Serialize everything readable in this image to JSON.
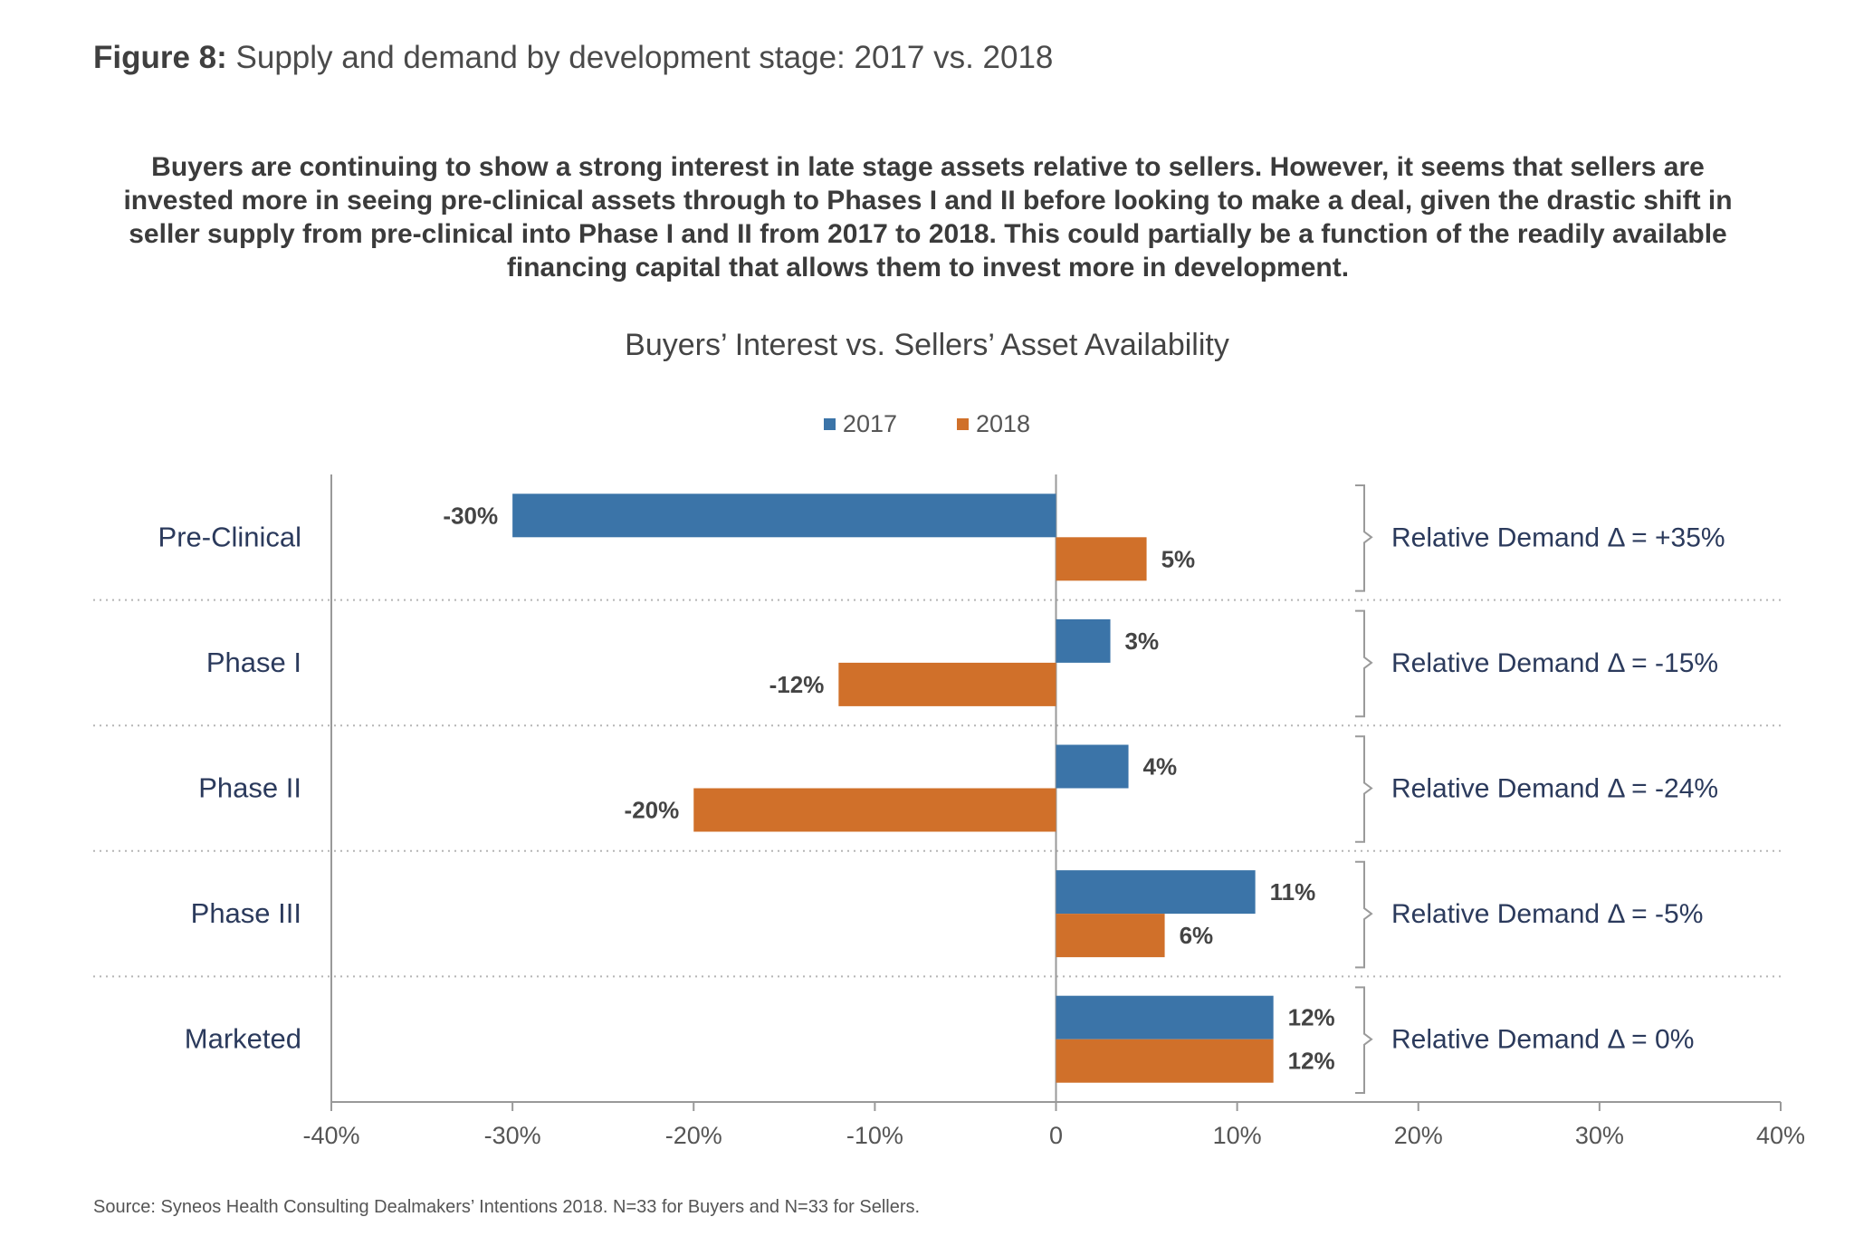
{
  "figure": {
    "label": "Figure 8:",
    "title": "Supply and demand by development stage: 2017 vs. 2018"
  },
  "summary": "Buyers are continuing to show a strong interest in late stage assets relative to sellers.  However, it seems that sellers are invested more in seeing pre-clinical assets through to Phases I and II before looking to make a deal, given the drastic shift in seller supply from pre-clinical into Phase I and II from 2017 to 2018. This could partially be a function of the readily available financing capital that allows them to invest more in development.",
  "source": "Source: Syneos Health Consulting Dealmakers’ Intentions 2018. N=33 for Buyers and N=33 for Sellers.",
  "chart_data": {
    "type": "bar",
    "orientation": "horizontal",
    "title": "Buyers’ Interest vs. Sellers’ Asset Availability",
    "categories": [
      "Pre-Clinical",
      "Phase I",
      "Phase II",
      "Phase III",
      "Marketed"
    ],
    "series": [
      {
        "name": "2017",
        "color": "#3b74a8",
        "values": [
          -30,
          3,
          4,
          11,
          12
        ],
        "labels": [
          "-30%",
          "3%",
          "4%",
          "11%",
          "12%"
        ]
      },
      {
        "name": "2018",
        "color": "#d0702a",
        "values": [
          5,
          -12,
          -20,
          6,
          12
        ],
        "labels": [
          "5%",
          "-12%",
          "-20%",
          "6%",
          "12%"
        ]
      }
    ],
    "xlim": [
      -40,
      40
    ],
    "xticks": [
      -40,
      -30,
      -20,
      -10,
      0,
      10,
      20,
      30,
      40
    ],
    "xtick_labels": [
      "-40%",
      "-30%",
      "-20%",
      "-10%",
      "0",
      "10%",
      "20%",
      "30%",
      "40%"
    ],
    "annotations": [
      "Relative Demand Δ = +35%",
      "Relative Demand Δ = -15%",
      "Relative Demand Δ = -24%",
      "Relative Demand Δ = -5%",
      "Relative Demand Δ = 0%"
    ],
    "legend_position": "top-center",
    "grid": "dotted row separators"
  },
  "colors": {
    "series_2017": "#3b74a8",
    "series_2018": "#d0702a",
    "category_text": "#2b3a5c",
    "value_text": "#444444"
  }
}
